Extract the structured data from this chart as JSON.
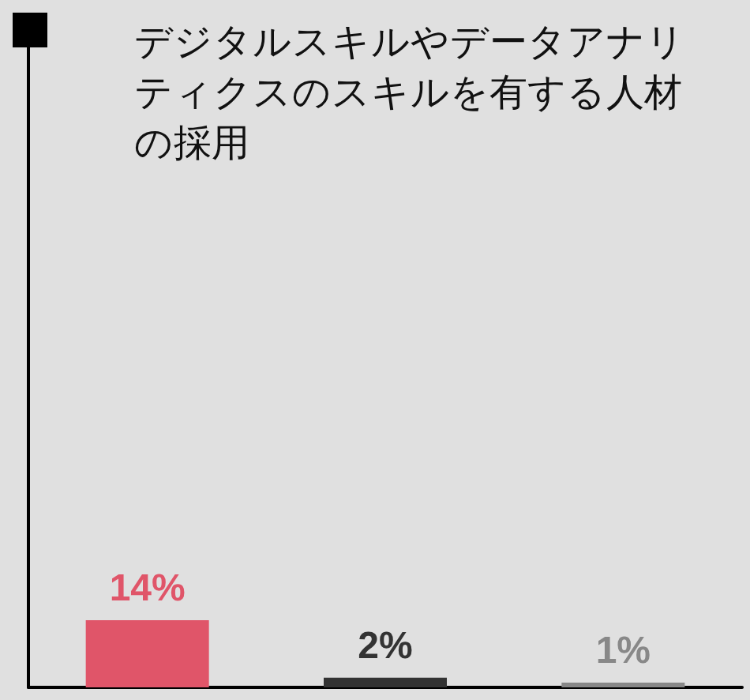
{
  "chart_data": {
    "type": "bar",
    "title": "デジタルスキルやデータアナリティクスのスキルを有する人材の採用",
    "categories": [
      null,
      null,
      null
    ],
    "values": [
      14,
      2,
      1
    ],
    "colors": [
      "#e05569",
      "#333333",
      "#888888"
    ],
    "value_labels": [
      "14%",
      "2%",
      "1%"
    ]
  }
}
